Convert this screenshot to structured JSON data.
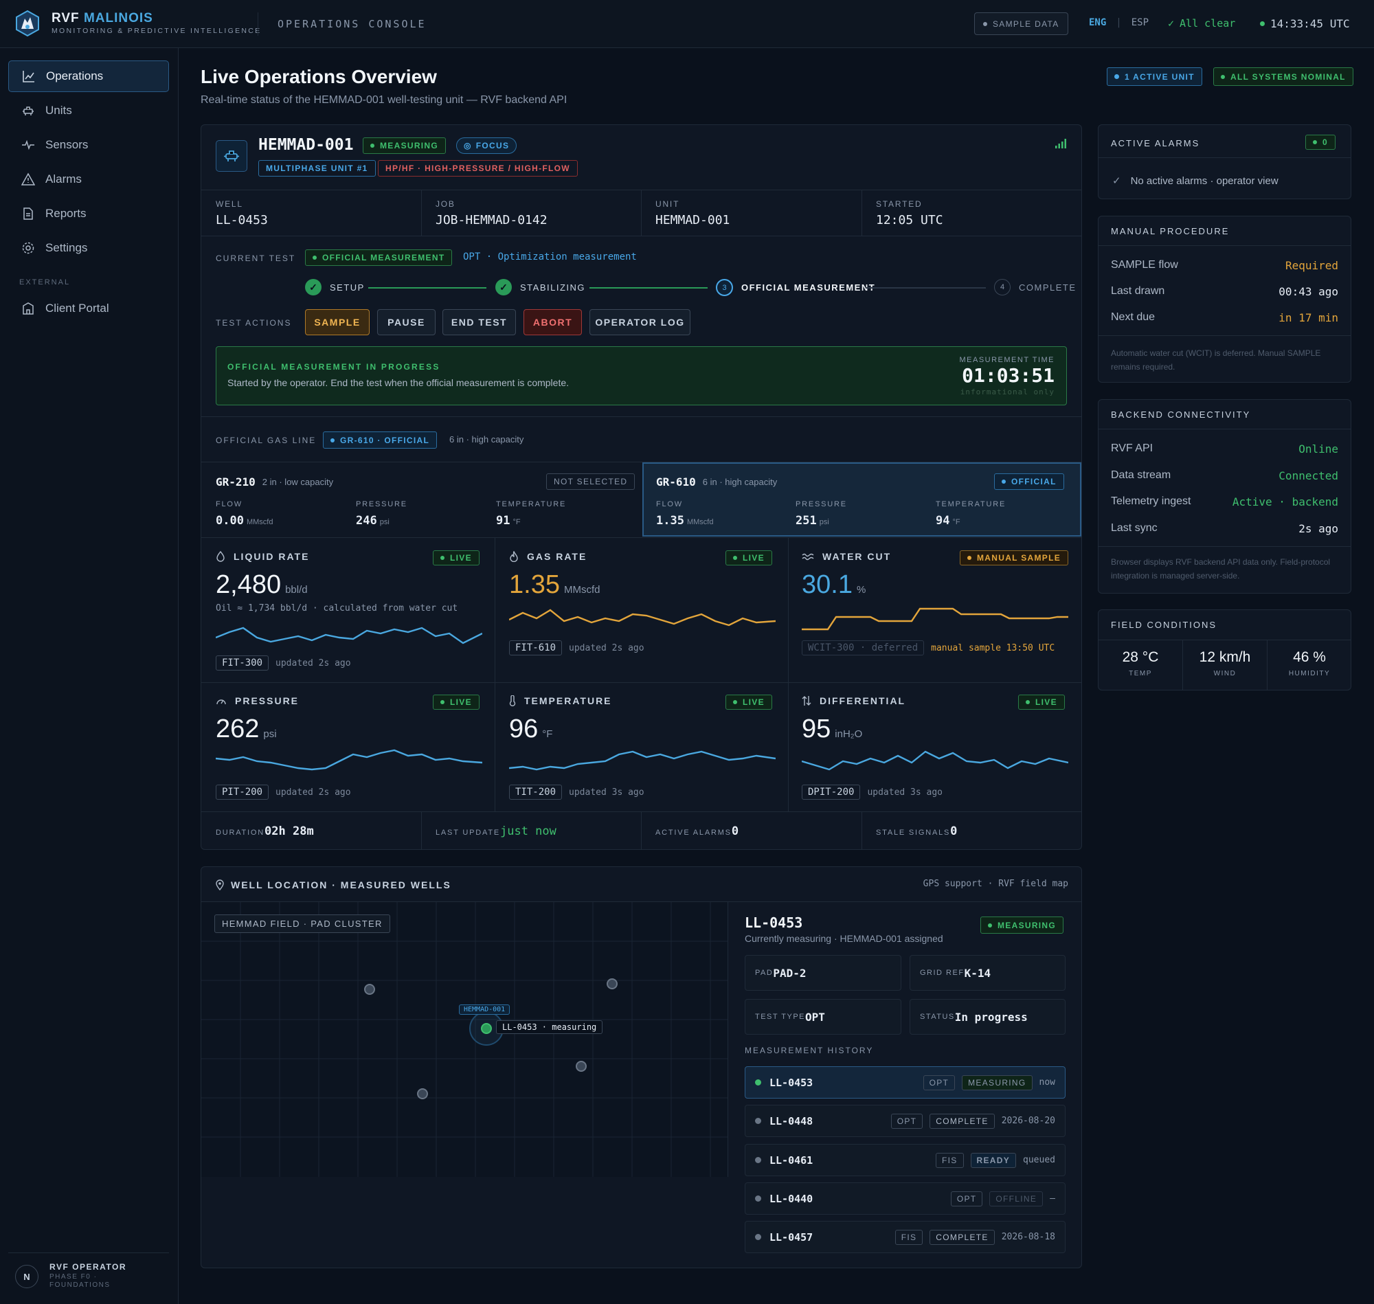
{
  "app": {
    "brand_a": "RVF",
    "brand_b": "MALINOIS",
    "tagline": "MONITORING & PREDICTIVE INTELLIGENCE",
    "console": "OPERATIONS CONSOLE"
  },
  "topbar": {
    "sample_data": "SAMPLE DATA",
    "lang_eng": "ENG",
    "lang_sep": "|",
    "lang_esp": "ESP",
    "all_clear": "All clear",
    "clock": "14:33:45 UTC"
  },
  "sidebar": {
    "items": [
      {
        "label": "Operations",
        "icon": "chart-line-icon"
      },
      {
        "label": "Units",
        "icon": "unit-icon"
      },
      {
        "label": "Sensors",
        "icon": "pulse-icon"
      },
      {
        "label": "Alarms",
        "icon": "warning-icon"
      },
      {
        "label": "Reports",
        "icon": "document-icon"
      },
      {
        "label": "Settings",
        "icon": "gear-icon"
      }
    ],
    "external_label": "EXTERNAL",
    "client_portal": "Client Portal",
    "user_initial": "N",
    "user_name": "RVF OPERATOR",
    "user_sub": "PHASE F0 · FOUNDATIONS"
  },
  "header": {
    "title": "Live Operations Overview",
    "subtitle": "Real-time status of the HEMMAD-001 well-testing unit — RVF backend API",
    "badge_units": "1 ACTIVE UNIT",
    "badge_systems": "ALL SYSTEMS NOMINAL"
  },
  "unit": {
    "name": "HEMMAD-001",
    "status": "MEASURING",
    "focus": "FOCUS",
    "tag1": "MULTIPHASE UNIT #1",
    "tag2": "HP/HF · HIGH-PRESSURE / HIGH-FLOW",
    "info": [
      {
        "label": "WELL",
        "value": "LL-0453"
      },
      {
        "label": "JOB",
        "value": "JOB-HEMMAD-0142"
      },
      {
        "label": "UNIT",
        "value": "HEMMAD-001"
      },
      {
        "label": "STARTED",
        "value": "12:05 UTC"
      }
    ],
    "current_test_label": "CURRENT TEST",
    "current_test_badge": "OFFICIAL MEASUREMENT",
    "current_test_desc": "OPT · Optimization measurement",
    "steps": [
      {
        "label": "SETUP",
        "state": "done"
      },
      {
        "label": "STABILIZING",
        "state": "done"
      },
      {
        "label": "OFFICIAL MEASUREMENT",
        "state": "active",
        "num": "3"
      },
      {
        "label": "COMPLETE",
        "state": "pending",
        "num": "4"
      }
    ],
    "actions_label": "TEST ACTIONS",
    "actions": [
      "SAMPLE",
      "PAUSE",
      "END TEST",
      "ABORT",
      "OPERATOR LOG"
    ],
    "progress": {
      "title": "OFFICIAL MEASUREMENT IN PROGRESS",
      "text": "Started by the operator. End the test when the official measurement is complete.",
      "time_label": "MEASUREMENT TIME",
      "time": "01:03:51",
      "note": "informational only"
    },
    "gas_line_label": "OFFICIAL GAS LINE",
    "gas_line_badge": "GR-610 · OFFICIAL",
    "gas_line_desc": "6 in · high capacity",
    "lines": [
      {
        "name": "GR-210",
        "desc": "2 in · low capacity",
        "badge": "NOT SELECTED",
        "flow": "0.00",
        "pressure": "246",
        "temperature": "91"
      },
      {
        "name": "GR-610",
        "desc": "6 in · high capacity",
        "badge": "OFFICIAL",
        "flow": "1.35",
        "pressure": "251",
        "temperature": "94"
      }
    ],
    "line_labels": {
      "flow": "FLOW",
      "pressure": "PRESSURE",
      "temperature": "TEMPERATURE",
      "flow_unit": "MMscfd",
      "pressure_unit": "psi",
      "temp_unit": "°F"
    },
    "metrics": [
      {
        "title": "LIQUID RATE",
        "badge": "LIVE",
        "value": "2,480",
        "unit": "bbl/d",
        "note": "Oil ≈ 1,734 bbl/d · calculated from water cut",
        "tag": "FIT-300",
        "updated": "updated 2s ago",
        "color": "#4aa8e0",
        "icon": "droplet-icon"
      },
      {
        "title": "GAS RATE",
        "badge": "LIVE",
        "value": "1.35",
        "unit": "MMscfd",
        "note": "",
        "tag": "FIT-610",
        "updated": "updated 2s ago",
        "color": "#e3a53b",
        "icon": "flame-icon"
      },
      {
        "title": "WATER CUT",
        "badge": "MANUAL SAMPLE",
        "value": "30.1",
        "unit": "%",
        "note": "",
        "tag": "WCIT-300 · deferred",
        "updated": "manual sample 13:50 UTC",
        "color": "#e3a53b",
        "icon": "waves-icon"
      },
      {
        "title": "PRESSURE",
        "badge": "LIVE",
        "value": "262",
        "unit": "psi",
        "note": "",
        "tag": "PIT-200",
        "updated": "updated 2s ago",
        "color": "#4aa8e0",
        "icon": "gauge-icon"
      },
      {
        "title": "TEMPERATURE",
        "badge": "LIVE",
        "value": "96",
        "unit": "°F",
        "note": "",
        "tag": "TIT-200",
        "updated": "updated 3s ago",
        "color": "#4aa8e0",
        "icon": "thermometer-icon"
      },
      {
        "title": "DIFFERENTIAL",
        "badge": "LIVE",
        "value": "95",
        "unit": "inH₂O",
        "note": "",
        "tag": "DPIT-200",
        "updated": "updated 3s ago",
        "color": "#4aa8e0",
        "icon": "arrows-icon"
      }
    ],
    "footer": [
      {
        "label": "DURATION",
        "value": "02h 28m"
      },
      {
        "label": "LAST UPDATE",
        "value": "just now"
      },
      {
        "label": "ACTIVE ALARMS",
        "value": "0"
      },
      {
        "label": "STALE SIGNALS",
        "value": "0"
      }
    ]
  },
  "alarms": {
    "title": "ACTIVE ALARMS",
    "count": "0",
    "text": "No active alarms · operator view"
  },
  "procedure": {
    "title": "MANUAL PROCEDURE",
    "rows": [
      {
        "label": "SAMPLE flow",
        "value": "Required"
      },
      {
        "label": "Last drawn",
        "value": "00:43 ago"
      },
      {
        "label": "Next due",
        "value": "in 17 min"
      }
    ],
    "note": "Automatic water cut (WCIT) is deferred. Manual SAMPLE remains required."
  },
  "backend": {
    "title": "BACKEND CONNECTIVITY",
    "rows": [
      {
        "label": "RVF API",
        "value": "Online"
      },
      {
        "label": "Data stream",
        "value": "Connected"
      },
      {
        "label": "Telemetry ingest",
        "value": "Active · backend"
      },
      {
        "label": "Last sync",
        "value": "2s ago"
      }
    ],
    "note": "Browser displays RVF backend API data only. Field-protocol integration is managed server-side."
  },
  "field": {
    "title": "FIELD CONDITIONS",
    "items": [
      {
        "value": "28 °C",
        "label": "TEMP"
      },
      {
        "value": "12 km/h",
        "label": "WIND"
      },
      {
        "value": "46 %",
        "label": "HUMIDITY"
      }
    ]
  },
  "map": {
    "title": "WELL LOCATION · MEASURED WELLS",
    "meta": "GPS support · RVF field map",
    "region": "HEMMAD FIELD · PAD CLUSTER",
    "unit_label": "HEMMAD-001",
    "well_label": "LL-0453 · measuring",
    "well": {
      "id": "LL-0453",
      "status": "MEASURING",
      "sub": "Currently measuring · HEMMAD-001 assigned"
    },
    "cells": [
      {
        "k": "PAD",
        "v": "PAD-2"
      },
      {
        "k": "GRID REF",
        "v": "K-14"
      },
      {
        "k": "TEST TYPE",
        "v": "OPT"
      },
      {
        "k": "STATUS",
        "v": "In progress"
      }
    ],
    "history_title": "MEASUREMENT HISTORY",
    "history": [
      {
        "id": "LL-0453",
        "type": "OPT",
        "status": "MEASURING",
        "date": "now"
      },
      {
        "id": "LL-0448",
        "type": "OPT",
        "status": "COMPLETE",
        "date": "2026-08-20"
      },
      {
        "id": "LL-0461",
        "type": "FIS",
        "status": "READY",
        "date": "queued"
      },
      {
        "id": "LL-0440",
        "type": "OPT",
        "status": "OFFLINE",
        "date": "—"
      },
      {
        "id": "LL-0457",
        "type": "FIS",
        "status": "COMPLETE",
        "date": "2026-08-18"
      }
    ]
  }
}
